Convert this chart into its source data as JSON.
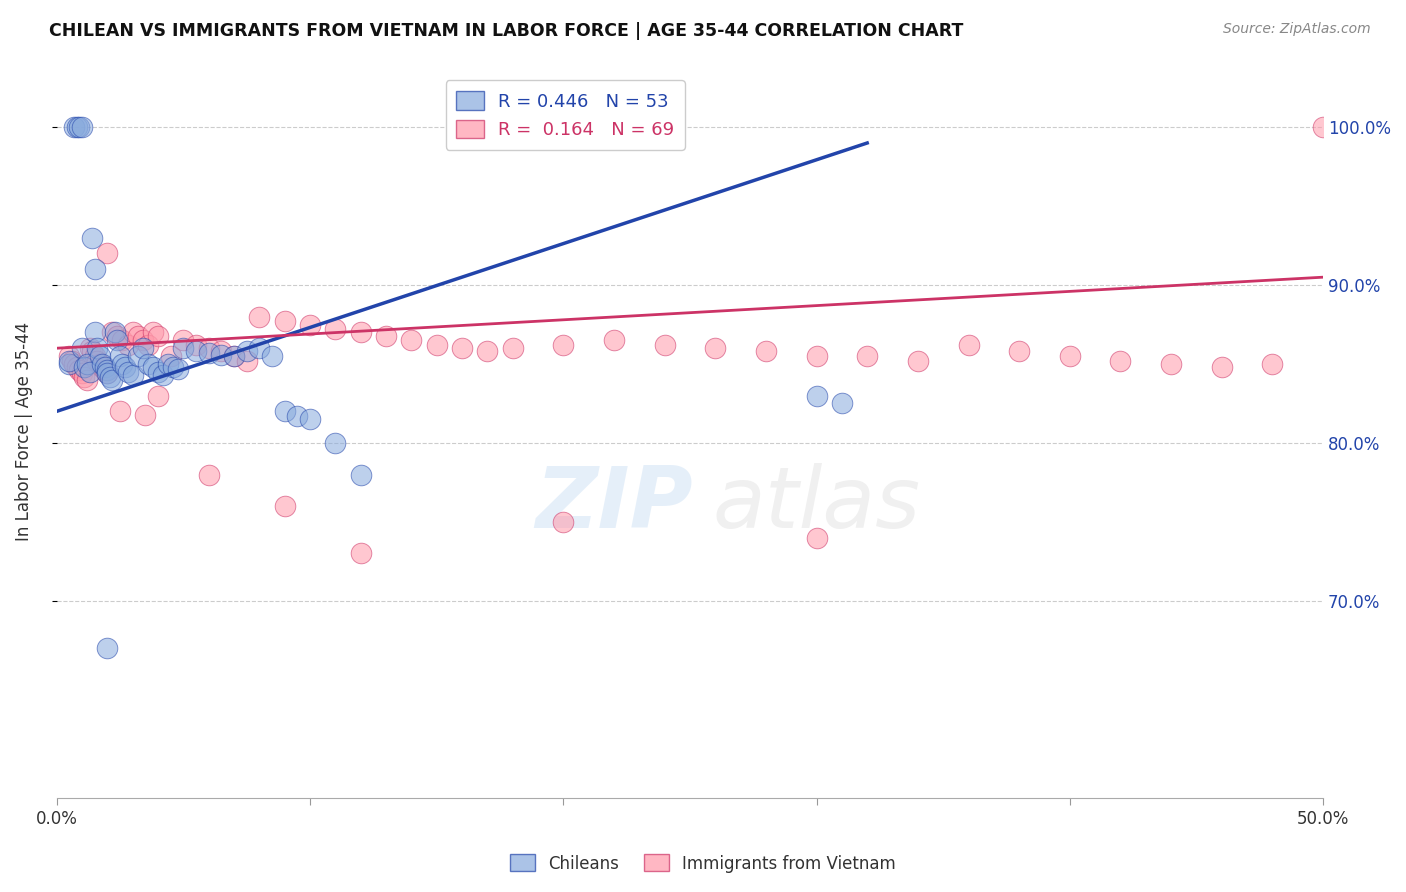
{
  "title": "CHILEAN VS IMMIGRANTS FROM VIETNAM IN LABOR FORCE | AGE 35-44 CORRELATION CHART",
  "source": "Source: ZipAtlas.com",
  "ylabel": "In Labor Force | Age 35-44",
  "ytick_labels": [
    "100.0%",
    "90.0%",
    "80.0%",
    "70.0%"
  ],
  "ytick_values": [
    1.0,
    0.9,
    0.8,
    0.7
  ],
  "xlim": [
    0.0,
    0.5
  ],
  "ylim": [
    0.575,
    1.04
  ],
  "blue_R": 0.446,
  "blue_N": 53,
  "pink_R": 0.164,
  "pink_N": 69,
  "blue_color": "#88AADD",
  "pink_color": "#FF99AA",
  "trendline_blue": "#2244AA",
  "trendline_pink": "#CC3366",
  "blue_scatter_x": [
    0.005,
    0.005,
    0.007,
    0.008,
    0.009,
    0.01,
    0.01,
    0.011,
    0.012,
    0.013,
    0.014,
    0.015,
    0.015,
    0.016,
    0.017,
    0.018,
    0.019,
    0.02,
    0.02,
    0.021,
    0.022,
    0.023,
    0.024,
    0.025,
    0.026,
    0.027,
    0.028,
    0.03,
    0.032,
    0.034,
    0.036,
    0.038,
    0.04,
    0.042,
    0.044,
    0.046,
    0.048,
    0.05,
    0.055,
    0.06,
    0.065,
    0.07,
    0.075,
    0.08,
    0.085,
    0.09,
    0.095,
    0.1,
    0.11,
    0.12,
    0.3,
    0.31,
    0.02
  ],
  "blue_scatter_y": [
    0.85,
    0.852,
    1.0,
    1.0,
    1.0,
    1.0,
    0.86,
    0.848,
    0.85,
    0.845,
    0.93,
    0.91,
    0.87,
    0.86,
    0.855,
    0.85,
    0.848,
    0.846,
    0.844,
    0.842,
    0.84,
    0.87,
    0.865,
    0.855,
    0.85,
    0.848,
    0.845,
    0.843,
    0.855,
    0.86,
    0.85,
    0.848,
    0.845,
    0.843,
    0.85,
    0.848,
    0.847,
    0.86,
    0.858,
    0.857,
    0.856,
    0.855,
    0.858,
    0.86,
    0.855,
    0.82,
    0.817,
    0.815,
    0.8,
    0.78,
    0.83,
    0.825,
    0.67
  ],
  "pink_scatter_x": [
    0.005,
    0.006,
    0.007,
    0.008,
    0.009,
    0.01,
    0.011,
    0.012,
    0.013,
    0.014,
    0.015,
    0.016,
    0.017,
    0.018,
    0.019,
    0.02,
    0.022,
    0.024,
    0.026,
    0.028,
    0.03,
    0.032,
    0.034,
    0.036,
    0.038,
    0.04,
    0.045,
    0.05,
    0.055,
    0.06,
    0.065,
    0.07,
    0.075,
    0.08,
    0.09,
    0.1,
    0.11,
    0.12,
    0.13,
    0.14,
    0.15,
    0.16,
    0.17,
    0.18,
    0.2,
    0.22,
    0.24,
    0.26,
    0.28,
    0.3,
    0.32,
    0.34,
    0.36,
    0.38,
    0.4,
    0.42,
    0.44,
    0.46,
    0.48,
    0.5,
    0.025,
    0.035,
    0.06,
    0.09,
    0.12,
    0.2,
    0.3,
    0.02,
    0.04
  ],
  "pink_scatter_y": [
    0.855,
    0.852,
    0.85,
    0.848,
    0.846,
    0.844,
    0.842,
    0.84,
    0.86,
    0.858,
    0.855,
    0.852,
    0.85,
    0.848,
    0.846,
    0.844,
    0.87,
    0.868,
    0.865,
    0.862,
    0.87,
    0.868,
    0.865,
    0.862,
    0.87,
    0.868,
    0.855,
    0.865,
    0.862,
    0.86,
    0.858,
    0.855,
    0.852,
    0.88,
    0.877,
    0.875,
    0.872,
    0.87,
    0.868,
    0.865,
    0.862,
    0.86,
    0.858,
    0.86,
    0.862,
    0.865,
    0.862,
    0.86,
    0.858,
    0.855,
    0.855,
    0.852,
    0.862,
    0.858,
    0.855,
    0.852,
    0.85,
    0.848,
    0.85,
    1.0,
    0.82,
    0.818,
    0.78,
    0.76,
    0.73,
    0.75,
    0.74,
    0.92,
    0.83
  ],
  "blue_trend_x": [
    0.0,
    0.32
  ],
  "blue_trend_y": [
    0.82,
    0.99
  ],
  "pink_trend_x": [
    0.0,
    0.5
  ],
  "pink_trend_y": [
    0.86,
    0.905
  ]
}
